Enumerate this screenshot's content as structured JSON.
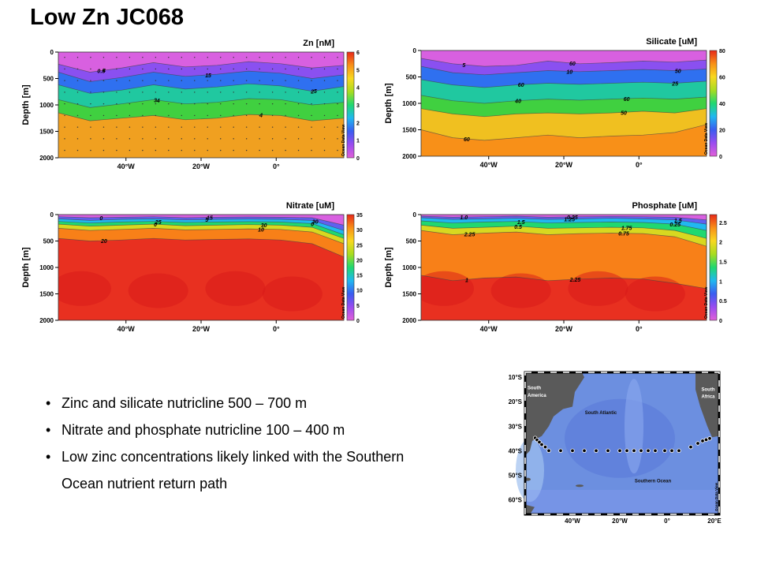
{
  "title": "Low Zn JC068",
  "chart_data": [
    {
      "type": "heatmap",
      "title": "Zn [nM]",
      "ylabel": "Depth [m]",
      "yticks": [
        "0",
        "500",
        "1000",
        "1500",
        "2000"
      ],
      "xticks": [
        "40°W",
        "20°W",
        "0°"
      ],
      "colorbar_ticks": [
        "0",
        "1",
        "2",
        "3",
        "4",
        "5",
        "6"
      ],
      "colorbar_range": [
        0,
        6
      ],
      "watermark": "Ocean Data View",
      "contour_labels": [
        "0.5",
        "1",
        "2",
        "3",
        "4",
        "4",
        "5",
        "5",
        "4"
      ],
      "contours": [
        {
          "level": 0.5,
          "depth": [
            230,
            380,
            300,
            200,
            280,
            250,
            180,
            220,
            300,
            250
          ]
        },
        {
          "level": 1,
          "depth": [
            380,
            560,
            480,
            380,
            460,
            420,
            360,
            400,
            500,
            430
          ]
        },
        {
          "level": 2,
          "depth": [
            620,
            780,
            720,
            620,
            700,
            660,
            600,
            640,
            740,
            650
          ]
        },
        {
          "level": 3,
          "depth": [
            900,
            1050,
            980,
            900,
            980,
            950,
            880,
            900,
            1000,
            950
          ]
        },
        {
          "level": 4,
          "depth": [
            1150,
            1300,
            1250,
            1200,
            1280,
            1250,
            1180,
            1200,
            1300,
            1250
          ]
        }
      ]
    },
    {
      "type": "heatmap",
      "title": "Silicate [uM]",
      "ylabel": "Depth [m]",
      "yticks": [
        "0",
        "500",
        "1000",
        "1500",
        "2000"
      ],
      "xticks": [
        "40°W",
        "20°W",
        "0°"
      ],
      "colorbar_ticks": [
        "0",
        "20",
        "40",
        "60",
        "80"
      ],
      "colorbar_range": [
        0,
        80
      ],
      "watermark": "Ocean Data View",
      "contour_labels": [
        "5",
        "10",
        "25",
        "40",
        "50",
        "60",
        "60",
        "50",
        "60",
        "60"
      ],
      "contours": [
        {
          "level": 5,
          "depth": [
            150,
            250,
            300,
            280,
            200,
            250,
            230,
            200,
            220,
            180
          ]
        },
        {
          "level": 10,
          "depth": [
            300,
            420,
            460,
            420,
            380,
            400,
            380,
            360,
            380,
            350
          ]
        },
        {
          "level": 25,
          "depth": [
            550,
            650,
            700,
            650,
            620,
            640,
            620,
            600,
            620,
            580
          ]
        },
        {
          "level": 40,
          "depth": [
            850,
            950,
            1000,
            950,
            920,
            940,
            920,
            900,
            920,
            880
          ]
        },
        {
          "level": 50,
          "depth": [
            1100,
            1200,
            1250,
            1200,
            1180,
            1200,
            1180,
            1150,
            1180,
            1100
          ]
        },
        {
          "level": 60,
          "depth": [
            1500,
            1650,
            1700,
            1650,
            1600,
            1650,
            1620,
            1600,
            1550,
            1400
          ]
        }
      ]
    },
    {
      "type": "heatmap",
      "title": "Nitrate [uM]",
      "ylabel": "Depth [m]",
      "yticks": [
        "0",
        "500",
        "1000",
        "1500",
        "2000"
      ],
      "xticks": [
        "40°W",
        "20°W",
        "0°"
      ],
      "colorbar_ticks": [
        "0",
        "5",
        "10",
        "15",
        "20",
        "25",
        "30",
        "35"
      ],
      "colorbar_range": [
        0,
        35
      ],
      "watermark": "Ocean Data View",
      "contour_labels": [
        "0",
        "5",
        "0",
        "0",
        "10",
        "20",
        "15",
        "30",
        "25",
        "30"
      ],
      "contours": [
        {
          "level": 5,
          "depth": [
            40,
            60,
            50,
            40,
            60,
            50,
            45,
            50,
            60,
            200
          ]
        },
        {
          "level": 10,
          "depth": [
            80,
            110,
            90,
            80,
            100,
            90,
            85,
            90,
            110,
            300
          ]
        },
        {
          "level": 15,
          "depth": [
            130,
            160,
            140,
            130,
            150,
            140,
            135,
            140,
            170,
            380
          ]
        },
        {
          "level": 20,
          "depth": [
            180,
            220,
            200,
            180,
            210,
            200,
            190,
            200,
            240,
            450
          ]
        },
        {
          "level": 25,
          "depth": [
            260,
            300,
            280,
            260,
            290,
            280,
            270,
            280,
            330,
            550
          ]
        },
        {
          "level": 30,
          "depth": [
            450,
            500,
            480,
            450,
            480,
            470,
            460,
            480,
            550,
            800
          ]
        }
      ]
    },
    {
      "type": "heatmap",
      "title": "Phosphate [uM]",
      "ylabel": "Depth [m]",
      "yticks": [
        "0",
        "500",
        "1000",
        "1500",
        "2000"
      ],
      "xticks": [
        "40°W",
        "20°W",
        "0°"
      ],
      "colorbar_ticks": [
        "0",
        "0.5",
        "1",
        "1.5",
        "2",
        "2.5"
      ],
      "colorbar_range": [
        0,
        2.7
      ],
      "watermark": "Ocean Data View",
      "contour_labels": [
        "1.0",
        "1.25",
        "0.25",
        "0.5",
        "0.75",
        "1",
        "0.25",
        "1.5",
        "1.5",
        "1.75",
        "2.25",
        "2.25"
      ],
      "contours": [
        {
          "level": 0.25,
          "depth": [
            30,
            50,
            40,
            30,
            50,
            40,
            35,
            40,
            50,
            100
          ]
        },
        {
          "level": 0.5,
          "depth": [
            60,
            90,
            80,
            70,
            90,
            80,
            70,
            80,
            100,
            180
          ]
        },
        {
          "level": 1,
          "depth": [
            120,
            160,
            140,
            130,
            160,
            150,
            140,
            150,
            180,
            300
          ]
        },
        {
          "level": 1.5,
          "depth": [
            200,
            260,
            240,
            220,
            260,
            250,
            240,
            250,
            300,
            450
          ]
        },
        {
          "level": 1.75,
          "depth": [
            300,
            380,
            350,
            330,
            380,
            360,
            350,
            360,
            420,
            600
          ]
        },
        {
          "level": 2.25,
          "depth": [
            1150,
            1250,
            1200,
            1180,
            1250,
            1220,
            1200,
            1220,
            1300,
            1400
          ]
        }
      ]
    }
  ],
  "bullets": [
    "Zinc and silicate nutricline 500 – 700 m",
    "Nitrate and phosphate nutricline 100 – 400 m",
    "Low zinc concentrations likely linked with the Southern"
  ],
  "bullet_continuation": "Ocean nutrient return path",
  "map": {
    "lat_ticks": [
      "10°S",
      "20°S",
      "30°S",
      "40°S",
      "50°S",
      "60°S"
    ],
    "lon_ticks": [
      "40°W",
      "20°W",
      "0°",
      "20°E"
    ],
    "labels": {
      "south_america": "South America",
      "south_africa": "South Africa",
      "south_atlantic": "South Atlantic",
      "southern_ocean": "Southern Ocean",
      "watermark": "Ocean Data View"
    },
    "stations": [
      {
        "lon": -55.8,
        "lat": -34.8
      },
      {
        "lon": -55.0,
        "lat": -35.6
      },
      {
        "lon": -54.0,
        "lat": -36.5
      },
      {
        "lon": -53.0,
        "lat": -37.5
      },
      {
        "lon": -51.5,
        "lat": -38.5
      },
      {
        "lon": -50.0,
        "lat": -40.0
      },
      {
        "lon": -45.0,
        "lat": -40.0
      },
      {
        "lon": -40.0,
        "lat": -40.0
      },
      {
        "lon": -35.0,
        "lat": -40.0
      },
      {
        "lon": -30.0,
        "lat": -40.0
      },
      {
        "lon": -25.0,
        "lat": -40.0
      },
      {
        "lon": -20.0,
        "lat": -40.0
      },
      {
        "lon": -17.0,
        "lat": -40.0
      },
      {
        "lon": -14.0,
        "lat": -40.0
      },
      {
        "lon": -11.0,
        "lat": -40.0
      },
      {
        "lon": -8.0,
        "lat": -40.0
      },
      {
        "lon": -5.0,
        "lat": -40.0
      },
      {
        "lon": -1.0,
        "lat": -40.0
      },
      {
        "lon": 2.0,
        "lat": -40.0
      },
      {
        "lon": 5.0,
        "lat": -40.0
      },
      {
        "lon": 10.0,
        "lat": -38.5
      },
      {
        "lon": 13.0,
        "lat": -37.0
      },
      {
        "lon": 15.0,
        "lat": -36.0
      },
      {
        "lon": 16.5,
        "lat": -35.5
      },
      {
        "lon": 18.0,
        "lat": -35.0
      }
    ]
  }
}
